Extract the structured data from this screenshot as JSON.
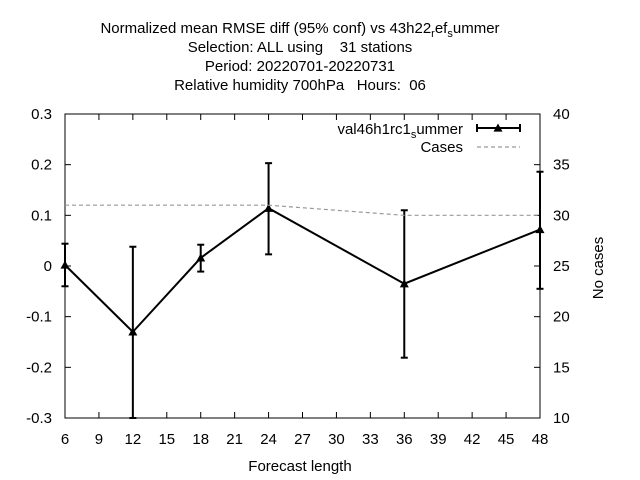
{
  "chart_data": {
    "type": "line",
    "title_lines": [
      "Normalized mean RMSE diff (95% conf) vs 43h22",
      "Selection: ALL using    31 stations",
      "Period: 20220701-20220731",
      "Relative humidity 700hPa   Hours:  06"
    ],
    "title_line1_parts": {
      "text": "Normalized mean RMSE diff (95% conf) vs 43h22",
      "sub1": "r",
      "mid": "ef",
      "sub2": "s",
      "tail": "ummer"
    },
    "xlabel": "Forecast length",
    "ylabel": "",
    "y2label": "No cases",
    "xlim": [
      6,
      48
    ],
    "ylim": [
      -0.3,
      0.3
    ],
    "y2lim": [
      10,
      40
    ],
    "xticks": [
      "6",
      "9",
      "12",
      "15",
      "18",
      "21",
      "24",
      "27",
      "30",
      "33",
      "36",
      "39",
      "42",
      "45",
      "48"
    ],
    "yticks": [
      "0.3",
      "0.2",
      "0.1",
      "0",
      "-0.1",
      "-0.2",
      "-0.3"
    ],
    "y2ticks": [
      "40",
      "35",
      "30",
      "25",
      "20",
      "15",
      "10"
    ],
    "grid": false,
    "legend_position": "top-right",
    "series": [
      {
        "name": "val46h1rc1",
        "name_parts": {
          "text": "val46h1rc1",
          "sub": "s",
          "tail": "ummer"
        },
        "style": "line-triangle-errorbars",
        "color": "#000000",
        "x": [
          6,
          12,
          18,
          24,
          36,
          48
        ],
        "y": [
          0.002,
          -0.13,
          0.016,
          0.114,
          -0.035,
          0.072
        ],
        "err_low": [
          -0.04,
          -0.3,
          -0.011,
          0.023,
          -0.181,
          -0.045
        ],
        "err_high": [
          0.044,
          0.038,
          0.042,
          0.203,
          0.11,
          0.186
        ]
      },
      {
        "name": "Cases",
        "style": "dashed",
        "color": "#999999",
        "axis": "y2",
        "x": [
          6,
          12,
          18,
          24,
          36,
          48
        ],
        "y": [
          31,
          31,
          31,
          31,
          30,
          30
        ]
      }
    ]
  }
}
